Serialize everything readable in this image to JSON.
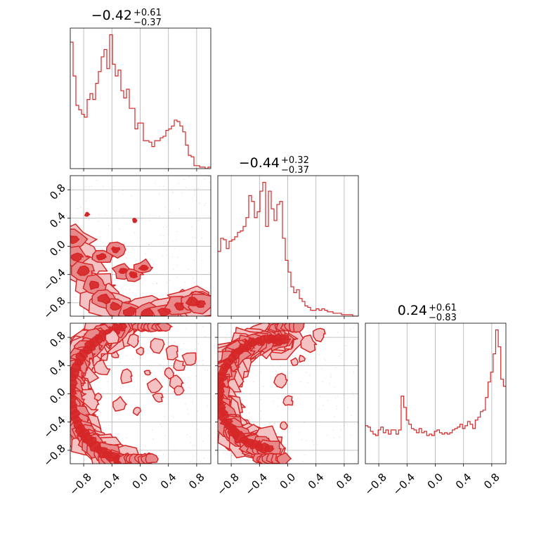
{
  "chart_data": {
    "type": "corner",
    "color": "#d62728",
    "fill_colors": [
      "#f4c2c2",
      "#e88a8b",
      "#d62728"
    ],
    "grid": true,
    "tick_values": [
      -0.8,
      -0.4,
      0.0,
      0.4,
      0.8
    ],
    "tick_labels": [
      "−0.8",
      "−0.4",
      "0.0",
      "0.4",
      "0.8"
    ],
    "parameter_ranges": [
      [
        -0.99,
        1.0
      ],
      [
        -0.99,
        1.0
      ],
      [
        -0.99,
        1.0
      ]
    ],
    "titles": [
      {
        "median": "−0.42",
        "plus": "+0.61",
        "minus": "−0.37"
      },
      {
        "median": "−0.44",
        "plus": "+0.32",
        "minus": "−0.37"
      },
      {
        "median": "0.24",
        "plus": "+0.61",
        "minus": "−0.83"
      }
    ],
    "histograms": [
      {
        "name": "param_1",
        "x_start": -0.99,
        "bin_width": 0.04975,
        "values": [
          0.86,
          0.63,
          0.43,
          0.4,
          0.37,
          0.35,
          0.47,
          0.51,
          0.47,
          0.58,
          0.66,
          0.76,
          0.81,
          0.68,
          0.91,
          0.71,
          0.63,
          0.67,
          0.53,
          0.48,
          0.54,
          0.41,
          0.41,
          0.27,
          0.31,
          0.31,
          0.19,
          0.19,
          0.18,
          0.15,
          0.19,
          0.19,
          0.21,
          0.22,
          0.26,
          0.27,
          0.29,
          0.33,
          0.32,
          0.29,
          0.25,
          0.16,
          0.09,
          0.08,
          0.02,
          0.02,
          0.01,
          0.01,
          0.0,
          0.01
        ]
      },
      {
        "name": "param_2",
        "x_start": -0.99,
        "bin_width": 0.04975,
        "values": [
          0.44,
          0.53,
          0.52,
          0.46,
          0.51,
          0.52,
          0.54,
          0.57,
          0.58,
          0.61,
          0.67,
          0.82,
          0.78,
          0.67,
          0.71,
          0.85,
          0.91,
          0.61,
          0.85,
          0.73,
          0.65,
          0.76,
          0.78,
          0.53,
          0.38,
          0.3,
          0.2,
          0.16,
          0.18,
          0.12,
          0.1,
          0.07,
          0.06,
          0.04,
          0.04,
          0.05,
          0.04,
          0.05,
          0.04,
          0.03,
          0.03,
          0.02,
          0.02,
          0.02,
          0.01,
          0.01,
          0.01,
          0.01,
          0.0,
          0.0
        ]
      },
      {
        "name": "param_3",
        "x_start": -0.99,
        "bin_width": 0.04975,
        "values": [
          0.27,
          0.26,
          0.23,
          0.21,
          0.2,
          0.24,
          0.26,
          0.22,
          0.24,
          0.21,
          0.24,
          0.24,
          0.21,
          0.24,
          0.48,
          0.4,
          0.31,
          0.28,
          0.25,
          0.24,
          0.22,
          0.25,
          0.22,
          0.23,
          0.2,
          0.21,
          0.2,
          0.23,
          0.24,
          0.22,
          0.21,
          0.22,
          0.21,
          0.22,
          0.24,
          0.25,
          0.26,
          0.28,
          0.25,
          0.27,
          0.3,
          0.28,
          0.25,
          0.31,
          0.33,
          0.37,
          0.38,
          0.47,
          0.58,
          0.65,
          0.78,
          0.95,
          0.83,
          0.6,
          0.55
        ]
      }
    ],
    "density_panels": [
      {
        "x_param": 1,
        "y_param": 2,
        "shape": "band",
        "points": [
          [
            -0.97,
            0.1
          ],
          [
            -0.9,
            -0.15
          ],
          [
            -0.8,
            -0.35
          ],
          [
            -0.65,
            -0.55
          ],
          [
            -0.5,
            -0.75
          ],
          [
            -0.35,
            -0.85
          ],
          [
            -0.15,
            -0.93
          ],
          [
            0.1,
            -0.95
          ],
          [
            0.35,
            -0.93
          ],
          [
            0.55,
            -0.85
          ],
          [
            0.75,
            -0.78
          ],
          [
            0.85,
            -0.82
          ]
        ],
        "blobs": [
          [
            -0.55,
            -0.15
          ],
          [
            -0.35,
            -0.05
          ],
          [
            -0.25,
            -0.35
          ],
          [
            -0.1,
            -0.4
          ],
          [
            0.05,
            -0.3
          ]
        ],
        "outliers": [
          [
            -0.75,
            0.45
          ],
          [
            -0.08,
            0.37
          ]
        ]
      },
      {
        "x_param": 1,
        "y_param": 3,
        "shape": "ring_partial",
        "ring_center": [
          0.0,
          0.0
        ],
        "ring_radius": 0.98,
        "arc_degrees": [
          105,
          255
        ],
        "scatter_islands": [
          [
            -0.4,
            0.8
          ],
          [
            -0.1,
            0.75
          ],
          [
            0.0,
            0.6
          ],
          [
            0.25,
            0.7
          ],
          [
            0.45,
            0.6
          ],
          [
            0.55,
            0.4
          ],
          [
            0.5,
            0.15
          ],
          [
            -0.55,
            0.35
          ],
          [
            -0.2,
            0.25
          ],
          [
            0.1,
            0.3
          ],
          [
            -0.3,
            -0.15
          ],
          [
            -0.6,
            -0.05
          ],
          [
            0.25,
            -0.05
          ],
          [
            0.4,
            0.3
          ],
          [
            0.2,
            0.1
          ],
          [
            -0.05,
            -0.25
          ],
          [
            0.55,
            0.05
          ],
          [
            0.7,
            0.5
          ],
          [
            -0.35,
            0.55
          ]
        ]
      },
      {
        "x_param": 2,
        "y_param": 3,
        "shape": "ring_partial",
        "ring_center": [
          -0.2,
          0.0
        ],
        "ring_radius": 0.78,
        "arc_degrees": [
          80,
          265
        ],
        "scatter_islands": [
          [
            0.2,
            0.5
          ],
          [
            0.3,
            0.7
          ],
          [
            0.45,
            0.85
          ],
          [
            -0.1,
            0.2
          ],
          [
            0.0,
            -0.1
          ],
          [
            -0.05,
            -0.45
          ],
          [
            0.1,
            0.45
          ]
        ]
      }
    ]
  }
}
